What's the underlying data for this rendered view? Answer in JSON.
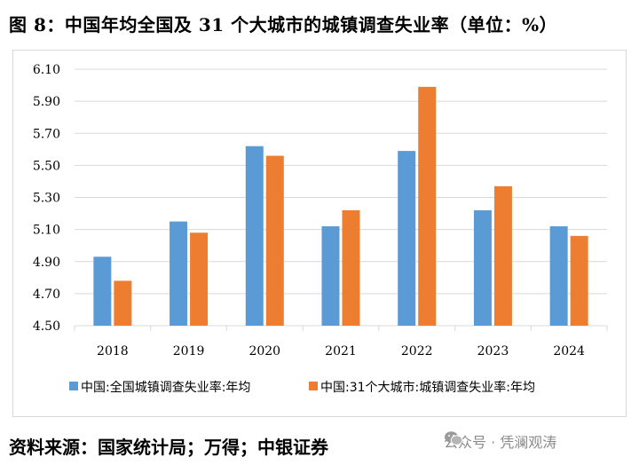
{
  "title": "图 8：中国年均全国及 31 个大城市的城镇调查失业率（单位：%）",
  "footer": {
    "source": "资料来源：国家统计局；万得；中银证券",
    "watermark": "公众号 · 凭澜观涛",
    "watermark_icon": "wechat-icon"
  },
  "colors": {
    "series1": "#5b9bd5",
    "series2": "#ed7d31",
    "grid": "#d9d9d9"
  },
  "chart_data": {
    "type": "bar",
    "title": "图 8：中国年均全国及 31 个大城市的城镇调查失业率（单位：%）",
    "xlabel": "",
    "ylabel": "",
    "categories": [
      "2018",
      "2019",
      "2020",
      "2021",
      "2022",
      "2023",
      "2024"
    ],
    "series": [
      {
        "name": "中国:全国城镇调查失业率:年均",
        "values": [
          4.93,
          5.15,
          5.62,
          5.12,
          5.59,
          5.22,
          5.12
        ]
      },
      {
        "name": "中国:31个大城市:城镇调查失业率:年均",
        "values": [
          4.78,
          5.08,
          5.56,
          5.22,
          5.99,
          5.37,
          5.06
        ]
      }
    ],
    "ylim": [
      4.5,
      6.1
    ],
    "yticks": [
      "4.50",
      "4.70",
      "4.90",
      "5.10",
      "5.30",
      "5.50",
      "5.70",
      "5.90",
      "6.10"
    ],
    "grid": true,
    "legend_position": "bottom"
  }
}
